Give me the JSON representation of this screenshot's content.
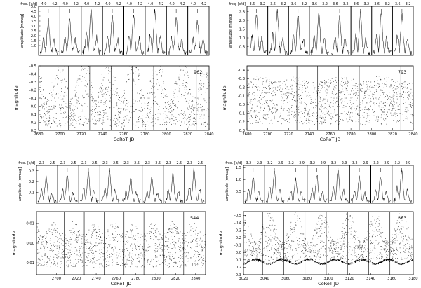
{
  "chart_data": [
    {
      "id": "962",
      "type": "scatter",
      "star_label": "962",
      "xlabel": "CoRoT JD",
      "ylabel": "magnitude",
      "xlim": [
        2680,
        2840
      ],
      "ylim": [
        0.3,
        -0.5
      ],
      "x_ticks": [
        "2680",
        "2700",
        "2720",
        "2740",
        "2760",
        "2780",
        "2800",
        "2820",
        "2840"
      ],
      "x_tick_values": [
        2680,
        2700,
        2720,
        2740,
        2760,
        2780,
        2800,
        2820,
        2840
      ],
      "y_ticks": [
        "-0.5",
        "-0.4",
        "-0.3",
        "-0.2",
        "-0.1",
        "0.0",
        "0.1",
        "0.2",
        "0.3"
      ],
      "y_tick_values": [
        -0.5,
        -0.4,
        -0.3,
        -0.2,
        -0.1,
        0.0,
        0.1,
        0.2,
        0.3
      ],
      "separators": [
        2708,
        2728,
        2748,
        2768,
        2788,
        2808,
        2828
      ],
      "period_days": 23,
      "phase_days": 2705,
      "band_top": -0.42,
      "band_bottom": 0.25,
      "envelope_amp": 0.32,
      "spectrum": {
        "ylabel": "amplitude [mmag]",
        "freq_label": "freq. [c/d]",
        "ylim": [
          0,
          5.0
        ],
        "y_ticks": [
          "1.0",
          "1.5",
          "2.0",
          "2.5",
          "3.0",
          "3.5",
          "4.0",
          "4.5",
          "5.0"
        ],
        "y_tick_values": [
          1.0,
          1.5,
          2.0,
          2.5,
          3.0,
          3.5,
          4.0,
          4.5,
          5.0
        ],
        "freq_ticks": [
          "4.0",
          "4.2",
          "4.0",
          "4.2",
          "4.0",
          "4.2",
          "4.0",
          "4.2",
          "4.0",
          "4.2",
          "4.0",
          "4.2",
          "4.0",
          "4.2",
          "4.0",
          "4.2"
        ],
        "panel_peaks": [
          3.3,
          3.6,
          4.4,
          3.6,
          4.0,
          4.2,
          3.4,
          3.1
        ]
      }
    },
    {
      "id": "793",
      "type": "scatter",
      "star_label": "793",
      "xlabel": "CoRoT JD",
      "ylabel": "magnitude",
      "xlim": [
        2680,
        2840
      ],
      "ylim": [
        0.3,
        -0.45
      ],
      "x_ticks": [
        "2680",
        "2700",
        "2720",
        "2740",
        "2760",
        "2780",
        "2800",
        "2820",
        "2840"
      ],
      "x_tick_values": [
        2680,
        2700,
        2720,
        2740,
        2760,
        2780,
        2800,
        2820,
        2840
      ],
      "y_ticks": [
        "-0.4",
        "-0.3",
        "-0.2",
        "-0.1",
        "0.0",
        "0.1",
        "0.2",
        "0.3"
      ],
      "y_tick_values": [
        -0.4,
        -0.3,
        -0.2,
        -0.1,
        0.0,
        0.1,
        0.2,
        0.3
      ],
      "separators": [
        2708,
        2728,
        2748,
        2768,
        2788,
        2808,
        2828
      ],
      "period_days": 40,
      "phase_days": 2700,
      "band_top": -0.3,
      "band_bottom": 0.22,
      "envelope_amp": 0.03,
      "spectrum": {
        "ylabel": "amplitude [mmag]",
        "freq_label": "freq. [c/d]",
        "ylim": [
          0,
          2.8
        ],
        "y_ticks": [
          "0.5",
          "1.0",
          "1.5",
          "2.0",
          "2.5"
        ],
        "y_tick_values": [
          0.5,
          1.0,
          1.5,
          2.0,
          2.5
        ],
        "freq_ticks": [
          "3.6",
          "3.2",
          "3.6",
          "3.2",
          "3.6",
          "3.2",
          "3.6",
          "3.2",
          "3.6",
          "3.2",
          "3.6",
          "3.2",
          "3.6",
          "3.2",
          "3.6",
          "3.2"
        ],
        "panel_peaks": [
          2.2,
          2.4,
          2.2,
          2.3,
          2.1,
          2.2,
          2.3,
          2.2
        ]
      }
    },
    {
      "id": "544",
      "type": "scatter",
      "star_label": "544",
      "xlabel": "CoRoT JD",
      "ylabel": "magnitude",
      "xlim": [
        2680,
        2850
      ],
      "ylim": [
        0.016,
        -0.016
      ],
      "x_ticks": [
        "2700",
        "2720",
        "2740",
        "2760",
        "2780",
        "2800",
        "2820",
        "2840"
      ],
      "x_tick_values": [
        2700,
        2720,
        2740,
        2760,
        2780,
        2800,
        2820,
        2840
      ],
      "y_ticks": [
        "-0.01",
        "0.00",
        "0.01"
      ],
      "y_tick_values": [
        -0.01,
        0.0,
        0.01
      ],
      "separators": [
        2708,
        2728,
        2748,
        2768,
        2788,
        2808,
        2828
      ],
      "period_days": 20,
      "phase_days": 2702,
      "band_top": -0.008,
      "band_bottom": 0.012,
      "envelope_amp": 0.003,
      "spectrum": {
        "ylabel": "amplitude [mmag]",
        "freq_label": "freq. [c/d]",
        "ylim": [
          0,
          0.35
        ],
        "y_ticks": [
          "0.1",
          "0.2",
          "0.3"
        ],
        "y_tick_values": [
          0.1,
          0.2,
          0.3
        ],
        "freq_ticks": [
          "2.3",
          "2.5",
          "2.3",
          "2.5",
          "2.3",
          "2.5",
          "2.3",
          "2.5",
          "2.3",
          "2.5",
          "2.3",
          "2.5",
          "2.3",
          "2.5",
          "2.3",
          "2.5"
        ],
        "panel_peaks": [
          0.22,
          0.24,
          0.27,
          0.28,
          0.2,
          0.21,
          0.25,
          0.3
        ]
      }
    },
    {
      "id": "363",
      "type": "scatter",
      "star_label": "363",
      "xlabel": "CoRoT JD",
      "ylabel": "magnitude",
      "xlim": [
        3020,
        3180
      ],
      "ylim": [
        0.3,
        -0.55
      ],
      "x_ticks": [
        "3020",
        "3040",
        "3060",
        "3080",
        "3100",
        "3120",
        "3140",
        "3160",
        "3180"
      ],
      "x_tick_values": [
        3020,
        3040,
        3060,
        3080,
        3100,
        3120,
        3140,
        3160,
        3180
      ],
      "y_ticks": [
        "-0.5",
        "-0.4",
        "-0.3",
        "-0.2",
        "-0.1",
        "0.0",
        "0.1",
        "0.2",
        "0.3"
      ],
      "y_tick_values": [
        -0.5,
        -0.4,
        -0.3,
        -0.2,
        -0.1,
        0.0,
        0.1,
        0.2,
        0.3
      ],
      "separators": [
        3038,
        3058,
        3078,
        3098,
        3118,
        3138,
        3158
      ],
      "period_days": 25,
      "phase_days": 3050,
      "band_top": -0.35,
      "band_bottom": 0.12,
      "envelope_amp": 0.2,
      "spectrum": {
        "ylabel": "amplitude [mmag]",
        "freq_label": "freq. [c/d]",
        "ylim": [
          0,
          1.6
        ],
        "y_ticks": [
          "0.5",
          "1.0",
          "1.5"
        ],
        "y_tick_values": [
          0.5,
          1.0,
          1.5
        ],
        "freq_ticks": [
          "3.2",
          "2.9",
          "3.2",
          "2.9",
          "3.2",
          "2.9",
          "3.2",
          "2.9",
          "3.2",
          "2.9",
          "3.2",
          "2.9",
          "3.2",
          "2.9",
          "3.2",
          "2.9"
        ],
        "panel_peaks": [
          1.0,
          1.25,
          0.9,
          1.1,
          1.3,
          1.0,
          1.05,
          1.3
        ]
      }
    }
  ]
}
